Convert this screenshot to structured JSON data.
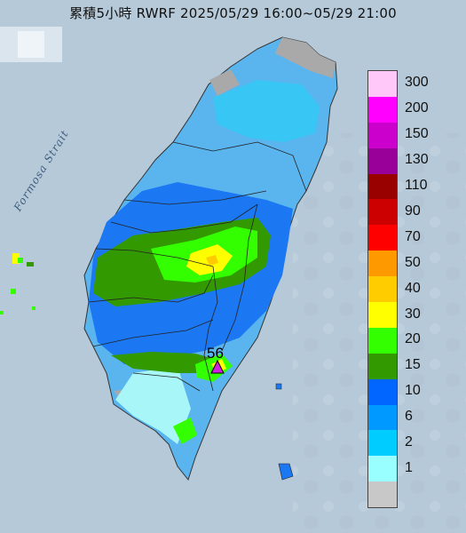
{
  "title": "累積5小時 RWRF 2025/05/29 16:00~05/29 21:00",
  "strait_label": "Formosa Strait",
  "peak_value": "56",
  "colors": {
    "sea": "#b9ccdb",
    "land": "#a9a9a9",
    "marker": "#d21ee0"
  },
  "legend": {
    "items": [
      {
        "label": "300",
        "color": "#ffc8f8"
      },
      {
        "label": "200",
        "color": "#ff00ff"
      },
      {
        "label": "150",
        "color": "#cc00cc"
      },
      {
        "label": "130",
        "color": "#990099"
      },
      {
        "label": "110",
        "color": "#990000"
      },
      {
        "label": "90",
        "color": "#cc0000"
      },
      {
        "label": "70",
        "color": "#ff0000"
      },
      {
        "label": "50",
        "color": "#ff9900"
      },
      {
        "label": "40",
        "color": "#ffcc00"
      },
      {
        "label": "30",
        "color": "#ffff00"
      },
      {
        "label": "20",
        "color": "#33ff00"
      },
      {
        "label": "15",
        "color": "#339900"
      },
      {
        "label": "10",
        "color": "#0066ff"
      },
      {
        "label": "6",
        "color": "#0099ff"
      },
      {
        "label": "2",
        "color": "#00ccff"
      },
      {
        "label": "1",
        "color": "#99ffff"
      },
      {
        "label": "",
        "color": "#c8c8c8"
      }
    ]
  }
}
